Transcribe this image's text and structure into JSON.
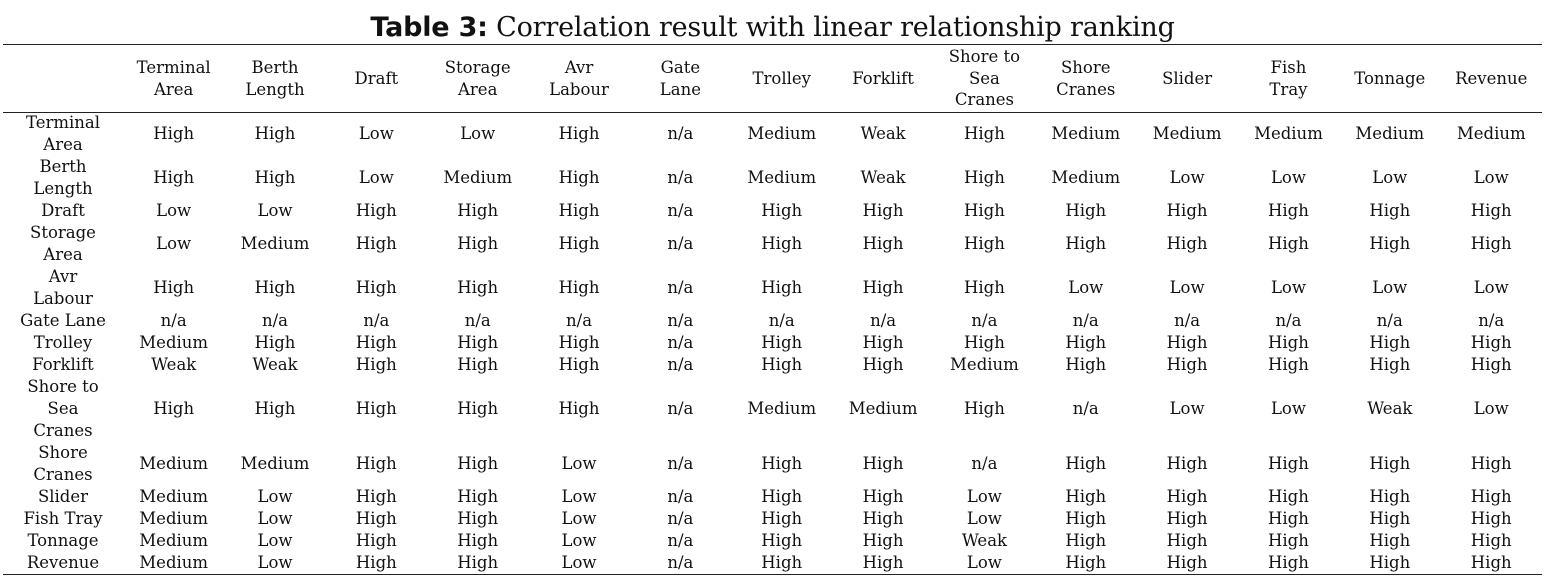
{
  "title": {
    "label": "Table 3:",
    "text": "Correlation result with linear relationship ranking"
  },
  "columns": [
    [
      "Terminal",
      "Area"
    ],
    [
      "Berth",
      "Length"
    ],
    [
      "Draft"
    ],
    [
      "Storage",
      "Area"
    ],
    [
      "Avr",
      "Labour"
    ],
    [
      "Gate",
      "Lane"
    ],
    [
      "Trolley"
    ],
    [
      "Forklift"
    ],
    [
      "Shore to",
      "Sea",
      "Cranes"
    ],
    [
      "Shore",
      "Cranes"
    ],
    [
      "Slider"
    ],
    [
      "Fish",
      "Tray"
    ],
    [
      "Tonnage"
    ],
    [
      "Revenue"
    ]
  ],
  "rows": [
    {
      "label": [
        "Terminal",
        "Area"
      ],
      "values": [
        "High",
        "High",
        "Low",
        "Low",
        "High",
        "n/a",
        "Medium",
        "Weak",
        "High",
        "Medium",
        "Medium",
        "Medium",
        "Medium",
        "Medium"
      ]
    },
    {
      "label": [
        "Berth",
        "Length"
      ],
      "values": [
        "High",
        "High",
        "Low",
        "Medium",
        "High",
        "n/a",
        "Medium",
        "Weak",
        "High",
        "Medium",
        "Low",
        "Low",
        "Low",
        "Low"
      ]
    },
    {
      "label": [
        "Draft"
      ],
      "values": [
        "Low",
        "Low",
        "High",
        "High",
        "High",
        "n/a",
        "High",
        "High",
        "High",
        "High",
        "High",
        "High",
        "High",
        "High"
      ]
    },
    {
      "label": [
        "Storage",
        "Area"
      ],
      "values": [
        "Low",
        "Medium",
        "High",
        "High",
        "High",
        "n/a",
        "High",
        "High",
        "High",
        "High",
        "High",
        "High",
        "High",
        "High"
      ]
    },
    {
      "label": [
        "Avr",
        "Labour"
      ],
      "values": [
        "High",
        "High",
        "High",
        "High",
        "High",
        "n/a",
        "High",
        "High",
        "High",
        "Low",
        "Low",
        "Low",
        "Low",
        "Low"
      ]
    },
    {
      "label": [
        "Gate Lane"
      ],
      "values": [
        "n/a",
        "n/a",
        "n/a",
        "n/a",
        "n/a",
        "n/a",
        "n/a",
        "n/a",
        "n/a",
        "n/a",
        "n/a",
        "n/a",
        "n/a",
        "n/a"
      ]
    },
    {
      "label": [
        "Trolley"
      ],
      "values": [
        "Medium",
        "High",
        "High",
        "High",
        "High",
        "n/a",
        "High",
        "High",
        "High",
        "High",
        "High",
        "High",
        "High",
        "High"
      ]
    },
    {
      "label": [
        "Forklift"
      ],
      "values": [
        "Weak",
        "Weak",
        "High",
        "High",
        "High",
        "n/a",
        "High",
        "High",
        "Medium",
        "High",
        "High",
        "High",
        "High",
        "High"
      ]
    },
    {
      "label": [
        "Shore to",
        "Sea",
        "Cranes"
      ],
      "values": [
        "High",
        "High",
        "High",
        "High",
        "High",
        "n/a",
        "Medium",
        "Medium",
        "High",
        "n/a",
        "Low",
        "Low",
        "Weak",
        "Low"
      ]
    },
    {
      "label": [
        "Shore",
        "Cranes"
      ],
      "values": [
        "Medium",
        "Medium",
        "High",
        "High",
        "Low",
        "n/a",
        "High",
        "High",
        "n/a",
        "High",
        "High",
        "High",
        "High",
        "High"
      ]
    },
    {
      "label": [
        "Slider"
      ],
      "values": [
        "Medium",
        "Low",
        "High",
        "High",
        "Low",
        "n/a",
        "High",
        "High",
        "Low",
        "High",
        "High",
        "High",
        "High",
        "High"
      ]
    },
    {
      "label": [
        "Fish Tray"
      ],
      "values": [
        "Medium",
        "Low",
        "High",
        "High",
        "Low",
        "n/a",
        "High",
        "High",
        "Low",
        "High",
        "High",
        "High",
        "High",
        "High"
      ]
    },
    {
      "label": [
        "Tonnage"
      ],
      "values": [
        "Medium",
        "Low",
        "High",
        "High",
        "Low",
        "n/a",
        "High",
        "High",
        "Weak",
        "High",
        "High",
        "High",
        "High",
        "High"
      ]
    },
    {
      "label": [
        "Revenue"
      ],
      "values": [
        "Medium",
        "Low",
        "High",
        "High",
        "Low",
        "n/a",
        "High",
        "High",
        "Low",
        "High",
        "High",
        "High",
        "High",
        "High"
      ]
    }
  ]
}
